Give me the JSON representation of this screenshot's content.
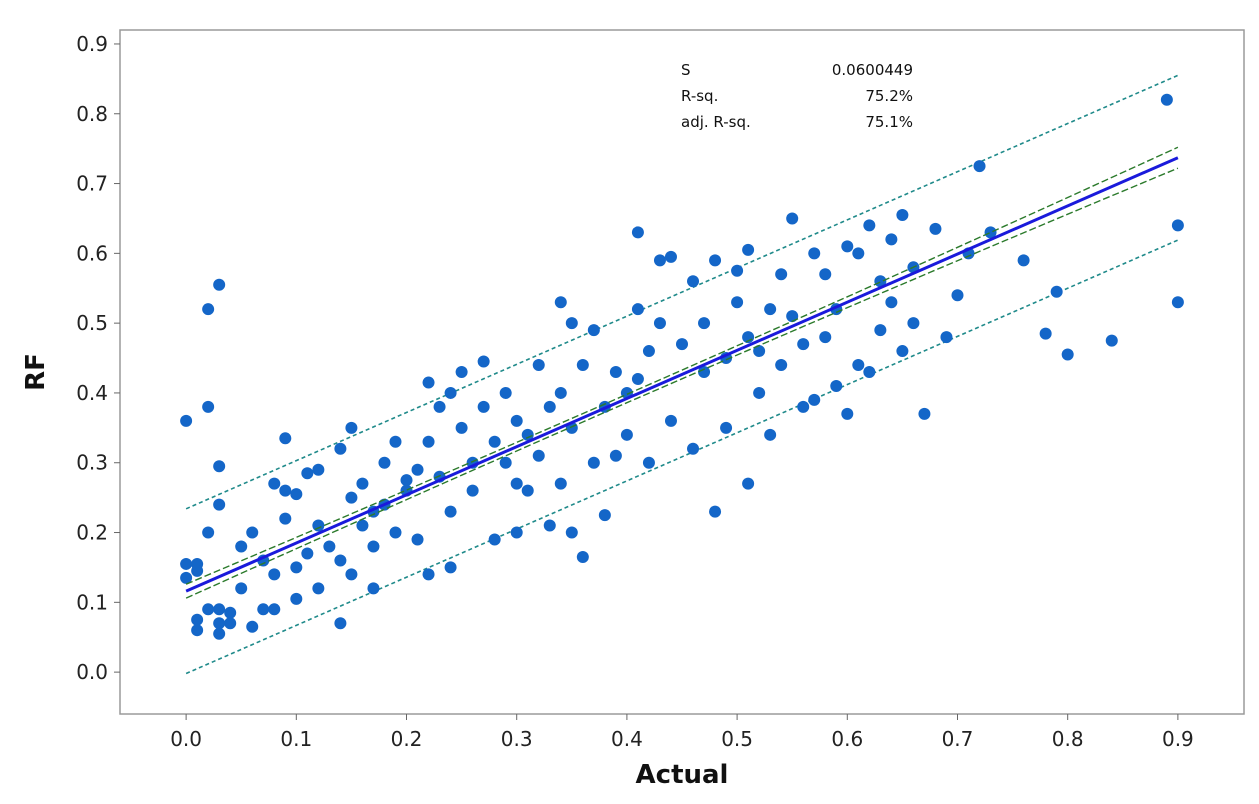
{
  "chart_data": {
    "type": "scatter",
    "title": "",
    "xlabel": "Actual",
    "ylabel": "RF",
    "xlim": [
      -0.06,
      0.96
    ],
    "ylim": [
      -0.06,
      0.92
    ],
    "xticks": [
      0.0,
      0.1,
      0.2,
      0.3,
      0.4,
      0.5,
      0.6,
      0.7,
      0.8,
      0.9
    ],
    "xtick_labels": [
      "0.0",
      "0.1",
      "0.2",
      "0.3",
      "0.4",
      "0.5",
      "0.6",
      "0.7",
      "0.8",
      "0.9"
    ],
    "yticks": [
      0.0,
      0.1,
      0.2,
      0.3,
      0.4,
      0.5,
      0.6,
      0.7,
      0.8,
      0.9
    ],
    "ytick_labels": [
      "0.0",
      "0.1",
      "0.2",
      "0.3",
      "0.4",
      "0.5",
      "0.6",
      "0.7",
      "0.8",
      "0.9"
    ],
    "grid": false,
    "stats": [
      {
        "label": "S",
        "value": "0.0600449"
      },
      {
        "label": "R-sq.",
        "value": "75.2%"
      },
      {
        "label": "adj. R-sq.",
        "value": "75.1%"
      }
    ],
    "fit": {
      "intercept": 0.116,
      "slope": 0.69,
      "color": "#1a1adb"
    },
    "confidence_band": {
      "halfwidth_min": 0.006,
      "halfwidth_max": 0.015,
      "color": "#2b7a2b"
    },
    "prediction_band": {
      "halfwidth": 0.118,
      "color": "#1f8a8a"
    },
    "point_color": "#1466c8",
    "points": [
      [
        0.0,
        0.36
      ],
      [
        0.0,
        0.155
      ],
      [
        0.0,
        0.135
      ],
      [
        0.01,
        0.155
      ],
      [
        0.01,
        0.145
      ],
      [
        0.01,
        0.075
      ],
      [
        0.01,
        0.06
      ],
      [
        0.02,
        0.52
      ],
      [
        0.02,
        0.38
      ],
      [
        0.02,
        0.2
      ],
      [
        0.02,
        0.09
      ],
      [
        0.03,
        0.555
      ],
      [
        0.03,
        0.295
      ],
      [
        0.03,
        0.24
      ],
      [
        0.03,
        0.09
      ],
      [
        0.03,
        0.07
      ],
      [
        0.03,
        0.055
      ],
      [
        0.04,
        0.085
      ],
      [
        0.04,
        0.07
      ],
      [
        0.05,
        0.18
      ],
      [
        0.05,
        0.12
      ],
      [
        0.06,
        0.2
      ],
      [
        0.06,
        0.065
      ],
      [
        0.07,
        0.16
      ],
      [
        0.07,
        0.09
      ],
      [
        0.08,
        0.27
      ],
      [
        0.08,
        0.14
      ],
      [
        0.08,
        0.09
      ],
      [
        0.09,
        0.335
      ],
      [
        0.09,
        0.26
      ],
      [
        0.09,
        0.22
      ],
      [
        0.1,
        0.255
      ],
      [
        0.1,
        0.15
      ],
      [
        0.1,
        0.105
      ],
      [
        0.11,
        0.285
      ],
      [
        0.11,
        0.17
      ],
      [
        0.12,
        0.29
      ],
      [
        0.12,
        0.21
      ],
      [
        0.12,
        0.12
      ],
      [
        0.13,
        0.18
      ],
      [
        0.14,
        0.32
      ],
      [
        0.14,
        0.16
      ],
      [
        0.14,
        0.07
      ],
      [
        0.15,
        0.35
      ],
      [
        0.15,
        0.25
      ],
      [
        0.15,
        0.14
      ],
      [
        0.16,
        0.27
      ],
      [
        0.16,
        0.21
      ],
      [
        0.17,
        0.23
      ],
      [
        0.17,
        0.18
      ],
      [
        0.17,
        0.12
      ],
      [
        0.18,
        0.3
      ],
      [
        0.18,
        0.24
      ],
      [
        0.19,
        0.2
      ],
      [
        0.19,
        0.33
      ],
      [
        0.2,
        0.275
      ],
      [
        0.2,
        0.26
      ],
      [
        0.21,
        0.29
      ],
      [
        0.21,
        0.19
      ],
      [
        0.22,
        0.415
      ],
      [
        0.22,
        0.33
      ],
      [
        0.22,
        0.14
      ],
      [
        0.23,
        0.38
      ],
      [
        0.23,
        0.28
      ],
      [
        0.24,
        0.4
      ],
      [
        0.24,
        0.23
      ],
      [
        0.24,
        0.15
      ],
      [
        0.25,
        0.43
      ],
      [
        0.25,
        0.35
      ],
      [
        0.26,
        0.3
      ],
      [
        0.26,
        0.26
      ],
      [
        0.27,
        0.445
      ],
      [
        0.27,
        0.38
      ],
      [
        0.28,
        0.33
      ],
      [
        0.28,
        0.19
      ],
      [
        0.29,
        0.4
      ],
      [
        0.29,
        0.3
      ],
      [
        0.3,
        0.36
      ],
      [
        0.3,
        0.27
      ],
      [
        0.3,
        0.2
      ],
      [
        0.31,
        0.34
      ],
      [
        0.31,
        0.26
      ],
      [
        0.32,
        0.44
      ],
      [
        0.32,
        0.31
      ],
      [
        0.33,
        0.38
      ],
      [
        0.33,
        0.21
      ],
      [
        0.34,
        0.53
      ],
      [
        0.34,
        0.4
      ],
      [
        0.34,
        0.27
      ],
      [
        0.35,
        0.5
      ],
      [
        0.35,
        0.35
      ],
      [
        0.35,
        0.2
      ],
      [
        0.36,
        0.44
      ],
      [
        0.36,
        0.165
      ],
      [
        0.37,
        0.49
      ],
      [
        0.37,
        0.3
      ],
      [
        0.38,
        0.38
      ],
      [
        0.38,
        0.225
      ],
      [
        0.39,
        0.43
      ],
      [
        0.39,
        0.31
      ],
      [
        0.4,
        0.4
      ],
      [
        0.4,
        0.34
      ],
      [
        0.41,
        0.63
      ],
      [
        0.41,
        0.52
      ],
      [
        0.41,
        0.42
      ],
      [
        0.42,
        0.46
      ],
      [
        0.42,
        0.3
      ],
      [
        0.43,
        0.59
      ],
      [
        0.43,
        0.5
      ],
      [
        0.44,
        0.595
      ],
      [
        0.44,
        0.36
      ],
      [
        0.45,
        0.47
      ],
      [
        0.46,
        0.56
      ],
      [
        0.46,
        0.32
      ],
      [
        0.47,
        0.5
      ],
      [
        0.47,
        0.43
      ],
      [
        0.48,
        0.59
      ],
      [
        0.48,
        0.23
      ],
      [
        0.49,
        0.45
      ],
      [
        0.49,
        0.35
      ],
      [
        0.5,
        0.575
      ],
      [
        0.5,
        0.53
      ],
      [
        0.51,
        0.605
      ],
      [
        0.51,
        0.48
      ],
      [
        0.51,
        0.27
      ],
      [
        0.52,
        0.46
      ],
      [
        0.52,
        0.4
      ],
      [
        0.53,
        0.52
      ],
      [
        0.53,
        0.34
      ],
      [
        0.54,
        0.57
      ],
      [
        0.54,
        0.44
      ],
      [
        0.55,
        0.65
      ],
      [
        0.55,
        0.51
      ],
      [
        0.56,
        0.47
      ],
      [
        0.56,
        0.38
      ],
      [
        0.57,
        0.6
      ],
      [
        0.57,
        0.39
      ],
      [
        0.58,
        0.57
      ],
      [
        0.58,
        0.48
      ],
      [
        0.59,
        0.52
      ],
      [
        0.59,
        0.41
      ],
      [
        0.6,
        0.61
      ],
      [
        0.6,
        0.37
      ],
      [
        0.61,
        0.6
      ],
      [
        0.61,
        0.44
      ],
      [
        0.62,
        0.64
      ],
      [
        0.62,
        0.43
      ],
      [
        0.63,
        0.56
      ],
      [
        0.63,
        0.49
      ],
      [
        0.64,
        0.62
      ],
      [
        0.64,
        0.53
      ],
      [
        0.65,
        0.655
      ],
      [
        0.65,
        0.46
      ],
      [
        0.66,
        0.58
      ],
      [
        0.66,
        0.5
      ],
      [
        0.67,
        0.37
      ],
      [
        0.68,
        0.635
      ],
      [
        0.69,
        0.48
      ],
      [
        0.7,
        0.54
      ],
      [
        0.71,
        0.6
      ],
      [
        0.72,
        0.725
      ],
      [
        0.73,
        0.63
      ],
      [
        0.76,
        0.59
      ],
      [
        0.78,
        0.485
      ],
      [
        0.79,
        0.545
      ],
      [
        0.8,
        0.455
      ],
      [
        0.84,
        0.475
      ],
      [
        0.89,
        0.82
      ],
      [
        0.9,
        0.64
      ],
      [
        0.9,
        0.53
      ]
    ]
  }
}
